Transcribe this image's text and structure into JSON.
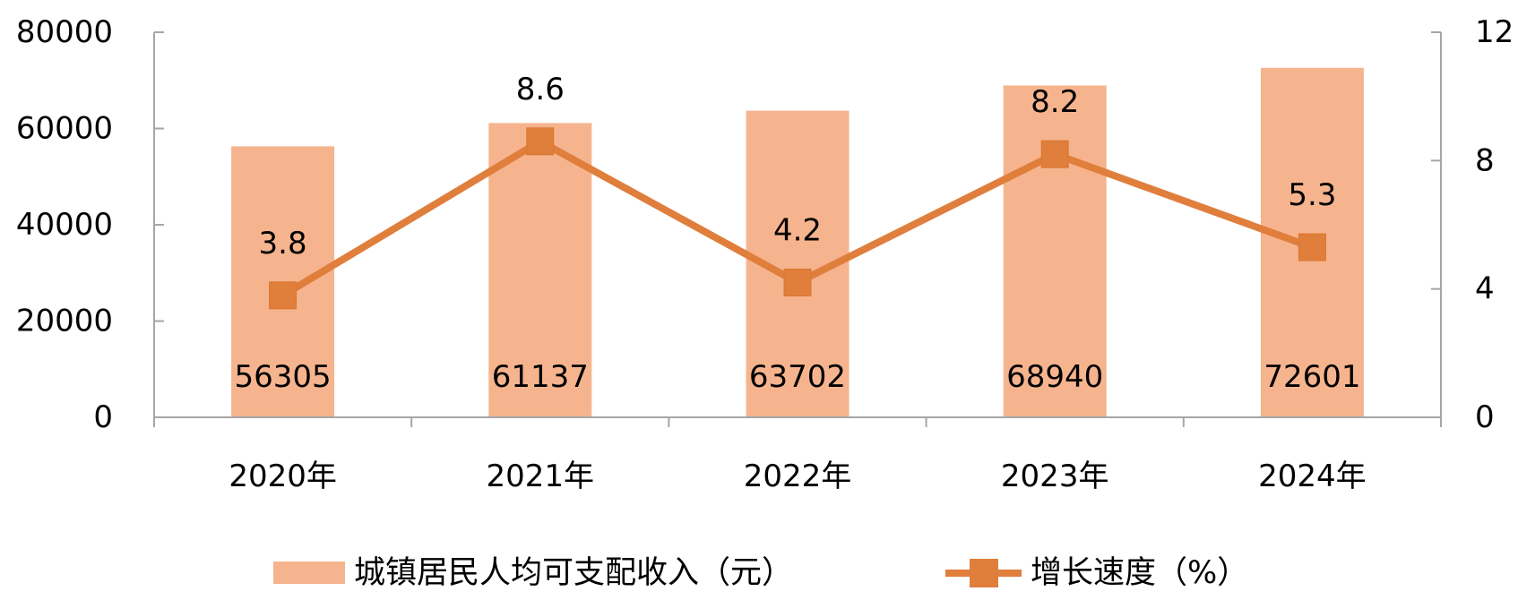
{
  "chart_data": {
    "type": "bar",
    "categories": [
      "2020年",
      "2021年",
      "2022年",
      "2023年",
      "2024年"
    ],
    "series": [
      {
        "name": "城镇居民人均可支配收入（元）",
        "type": "bar",
        "axis": "left",
        "values": [
          56305,
          61137,
          63702,
          68940,
          72601
        ],
        "color": "#F6B48E"
      },
      {
        "name": "增长速度（%）",
        "type": "line",
        "marker": "square",
        "axis": "right",
        "values": [
          3.8,
          8.6,
          4.2,
          8.2,
          5.3
        ],
        "color": "#E07E3C"
      }
    ],
    "y_left": {
      "min": 0,
      "max": 80000,
      "ticks": [
        0,
        20000,
        40000,
        60000,
        80000
      ]
    },
    "y_right": {
      "min": 0,
      "max": 12,
      "ticks": [
        0,
        4,
        8,
        12
      ]
    },
    "grid": false,
    "legend_position": "bottom"
  }
}
